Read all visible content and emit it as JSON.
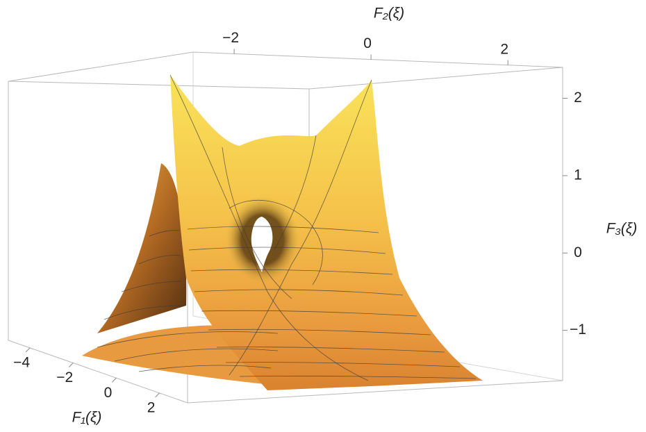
{
  "chart_data": {
    "type": "surface3d",
    "xlabel": "F₁(ξ)",
    "ylabel": "F₂(ξ)",
    "zlabel": "F₃(ξ)",
    "xlim": [
      -5,
      3.3
    ],
    "xticks": [
      {
        "value": -4,
        "label": "−4"
      },
      {
        "value": -2,
        "label": "−2"
      },
      0,
      2
    ],
    "ylim": [
      -2.6,
      2.8
    ],
    "yticks": [
      {
        "value": -2,
        "label": "−2"
      },
      0,
      2
    ],
    "zlim": [
      -1.65,
      2.4
    ],
    "zticks": [
      {
        "value": -1,
        "label": "−1"
      },
      0,
      1,
      2
    ]
  }
}
